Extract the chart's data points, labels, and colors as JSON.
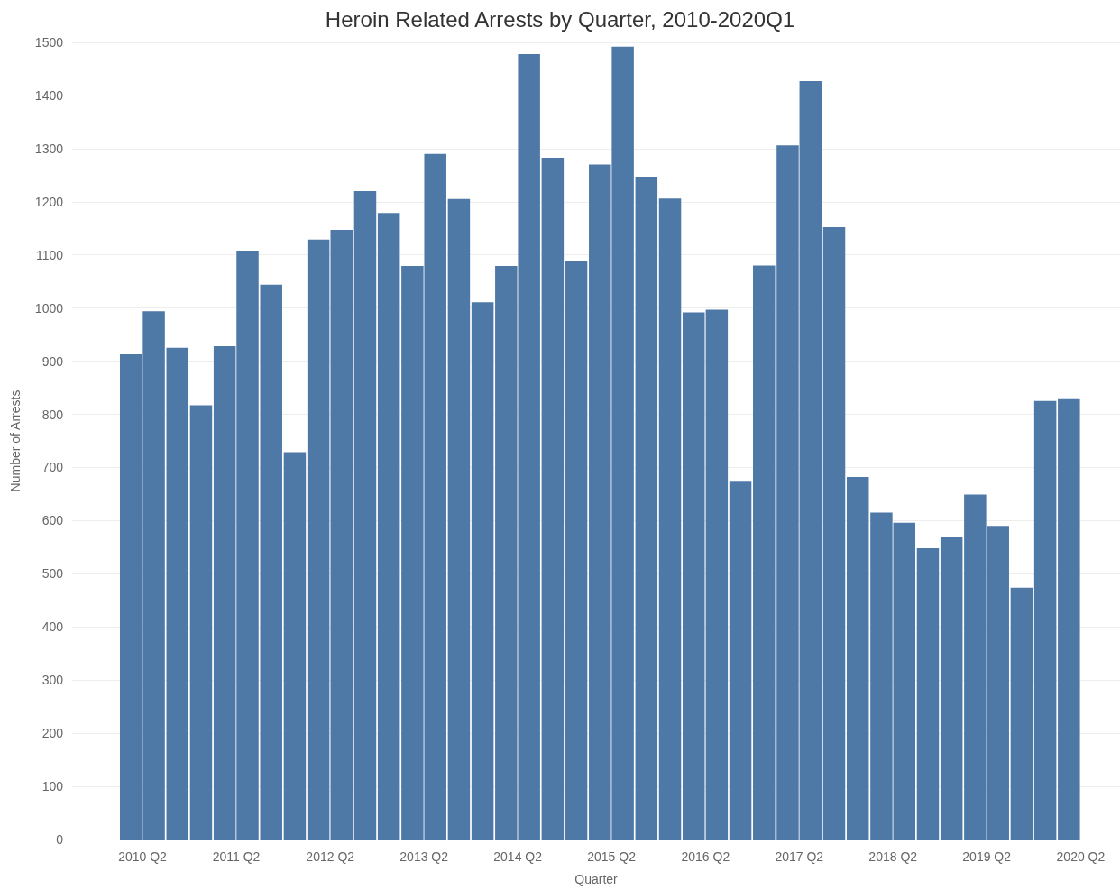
{
  "chart_data": {
    "type": "bar",
    "title": "Heroin Related Arrests by Quarter, 2010-2020Q1",
    "xlabel": "Quarter",
    "ylabel": "Number of Arrests",
    "x": [
      "2010-02-15",
      "2010-05-15",
      "2010-08-15",
      "2010-11-15",
      "2011-02-15",
      "2011-05-15",
      "2011-08-15",
      "2011-11-15",
      "2012-02-15",
      "2012-05-15",
      "2012-08-15",
      "2012-11-15",
      "2013-02-15",
      "2013-05-15",
      "2013-08-15",
      "2013-11-15",
      "2014-02-15",
      "2014-05-15",
      "2014-08-15",
      "2014-11-15",
      "2015-02-15",
      "2015-05-15",
      "2015-08-15",
      "2015-11-15",
      "2016-02-15",
      "2016-05-15",
      "2016-08-15",
      "2016-11-15",
      "2017-02-15",
      "2017-05-15",
      "2017-08-15",
      "2017-11-15",
      "2018-02-15",
      "2018-05-15",
      "2018-08-15",
      "2018-11-15",
      "2019-02-15",
      "2019-05-15",
      "2019-08-15",
      "2019-11-15",
      "2020-02-15"
    ],
    "values": [
      913,
      994,
      925,
      817,
      928,
      1108,
      1044,
      729,
      1129,
      1147,
      1220,
      1179,
      1079,
      1290,
      1205,
      1011,
      1079,
      1478,
      1283,
      1089,
      1270,
      1492,
      1247,
      1206,
      992,
      997,
      675,
      1080,
      1306,
      1427,
      1152,
      682,
      615,
      596,
      548,
      569,
      649,
      590,
      474,
      825,
      830
    ],
    "color": "#4e79a7",
    "xlim": [
      "2009-07",
      "2020-09"
    ],
    "xticks": [
      {
        "value": "2010-04",
        "label": "2010 Q2"
      },
      {
        "value": "2011-04",
        "label": "2011 Q2"
      },
      {
        "value": "2012-04",
        "label": "2012 Q2"
      },
      {
        "value": "2013-04",
        "label": "2013 Q2"
      },
      {
        "value": "2014-04",
        "label": "2014 Q2"
      },
      {
        "value": "2015-04",
        "label": "2015 Q2"
      },
      {
        "value": "2016-04",
        "label": "2016 Q2"
      },
      {
        "value": "2017-04",
        "label": "2017 Q2"
      },
      {
        "value": "2018-04",
        "label": "2018 Q2"
      },
      {
        "value": "2019-04",
        "label": "2019 Q2"
      },
      {
        "value": "2020-04",
        "label": "2020 Q2"
      }
    ],
    "ylim": [
      0,
      1500
    ],
    "yticks": [
      0,
      100,
      200,
      300,
      400,
      500,
      600,
      700,
      800,
      900,
      1000,
      1100,
      1200,
      1300,
      1400,
      1500
    ],
    "grid": "y"
  }
}
